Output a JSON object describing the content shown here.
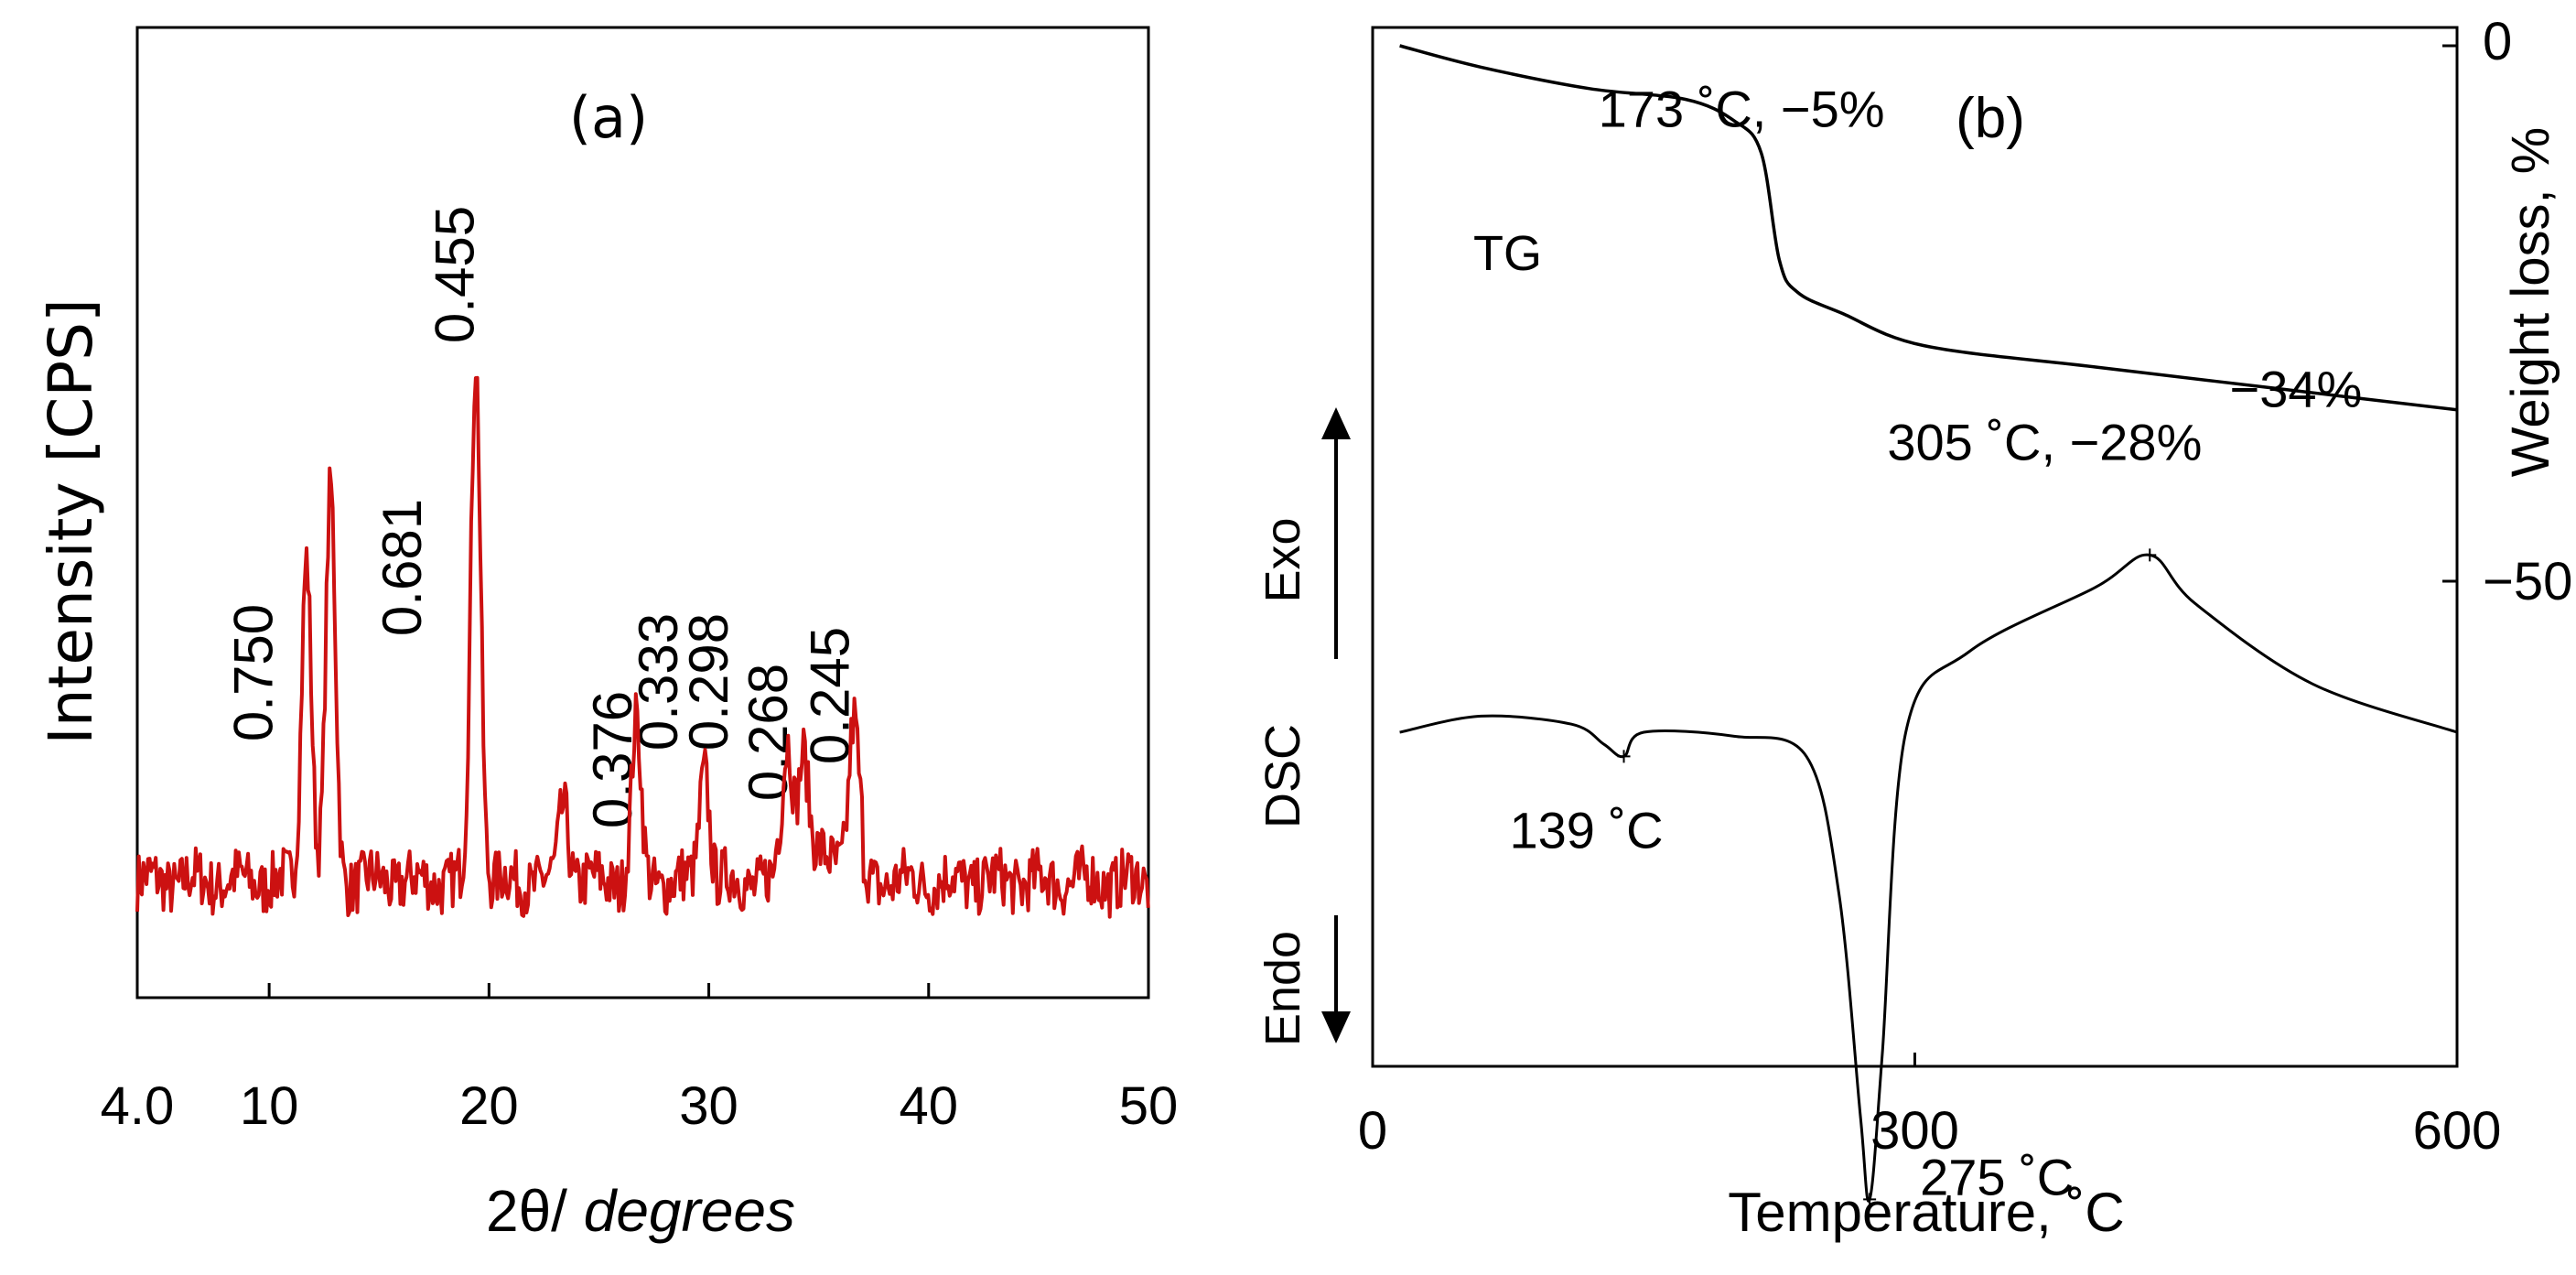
{
  "chart_data": [
    {
      "id": "a",
      "type": "line",
      "panel_label": "(a)",
      "xlabel_prefix": "2θ/ ",
      "xlabel_italic": "degrees",
      "ylabel": "Intensity [CPS]",
      "xlim": [
        4,
        50
      ],
      "ylim": [
        0,
        100
      ],
      "xticks": [
        4,
        10,
        20,
        30,
        40,
        50
      ],
      "xtick_labels": [
        "4.0",
        "10",
        "20",
        "30",
        "40",
        "50"
      ],
      "line_color": "#cc1111",
      "baseline": 12,
      "peaks": [
        {
          "x": 11.7,
          "y": 46,
          "label": "0.750"
        },
        {
          "x": 12.8,
          "y": 52,
          "label": "0.681"
        },
        {
          "x": 19.4,
          "y": 66,
          "label": "0.455"
        },
        {
          "x": 23.4,
          "y": 20,
          "label": "0.376"
        },
        {
          "x": 26.7,
          "y": 28,
          "label": "0.333"
        },
        {
          "x": 29.8,
          "y": 24,
          "label": "0.298"
        },
        {
          "x": 33.6,
          "y": 24,
          "label": "0.268"
        },
        {
          "x": 34.3,
          "y": 23,
          "label": ""
        },
        {
          "x": 36.6,
          "y": 26,
          "label": "0.245"
        }
      ]
    },
    {
      "id": "b",
      "type": "line",
      "panel_label": "(b)",
      "xlabel": "Temperature, ˚C",
      "xlim": [
        0,
        600
      ],
      "xticks": [
        0,
        300,
        600
      ],
      "xtick_labels": [
        "0",
        "300",
        "600"
      ],
      "tg": {
        "name": "TG",
        "ylabel": "Weight loss, %",
        "yticks": [
          0,
          -50
        ],
        "ytick_labels": [
          "0",
          "−50"
        ],
        "points": [
          [
            15,
            0
          ],
          [
            60,
            -2
          ],
          [
            120,
            -4
          ],
          [
            173,
            -5
          ],
          [
            200,
            -7
          ],
          [
            215,
            -10
          ],
          [
            225,
            -20
          ],
          [
            235,
            -23
          ],
          [
            260,
            -25
          ],
          [
            305,
            -28
          ],
          [
            400,
            -30
          ],
          [
            500,
            -32
          ],
          [
            600,
            -34
          ]
        ],
        "annotations": [
          {
            "text": "173 ˚C, −5%",
            "x": 173,
            "y": -5
          },
          {
            "text": "305 ˚C, −28%",
            "x": 305,
            "y": -28
          },
          {
            "text": "−34%",
            "x": 540,
            "y": -32
          }
        ]
      },
      "dsc": {
        "name": "DSC",
        "exo_label": "Exo",
        "endo_label": "Endo",
        "points": [
          [
            15,
            0
          ],
          [
            60,
            2
          ],
          [
            110,
            1
          ],
          [
            128,
            -1.5
          ],
          [
            139,
            -3
          ],
          [
            150,
            0
          ],
          [
            200,
            -0.5
          ],
          [
            240,
            -3
          ],
          [
            258,
            -20
          ],
          [
            270,
            -48
          ],
          [
            275,
            -58
          ],
          [
            282,
            -40
          ],
          [
            295,
            0
          ],
          [
            330,
            10
          ],
          [
            400,
            18
          ],
          [
            430,
            22
          ],
          [
            455,
            16
          ],
          [
            520,
            6
          ],
          [
            600,
            0
          ]
        ],
        "annotations": [
          {
            "text": "139 ˚C",
            "x": 139,
            "y": -3
          },
          {
            "text": "275 ˚C",
            "x": 275,
            "y": -58
          }
        ]
      }
    }
  ]
}
